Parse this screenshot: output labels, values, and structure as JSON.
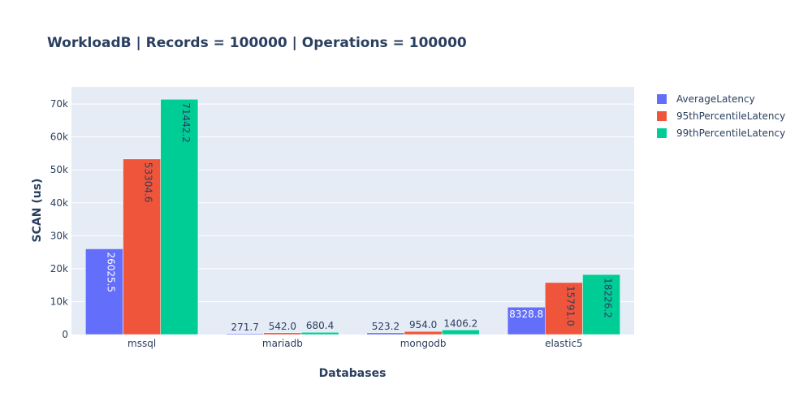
{
  "chart_data": {
    "type": "bar",
    "title": "WorkloadB | Records = 100000 | Operations = 100000",
    "xlabel": "Databases",
    "ylabel": "SCAN (us)",
    "categories": [
      "mssql",
      "mariadb",
      "mongodb",
      "elastic5"
    ],
    "series": [
      {
        "name": "AverageLatency",
        "color": "#636efa",
        "values": [
          26025.5,
          271.7,
          523.2,
          8328.8
        ],
        "labels": [
          "26025.5",
          "271.7",
          "523.2",
          "8328.8"
        ]
      },
      {
        "name": "95thPercentileLatency",
        "color": "#ef553b",
        "values": [
          53304.6,
          542.0,
          954.0,
          15791.0
        ],
        "labels": [
          "53304.6",
          "542.0",
          "954.0",
          "15791.0"
        ]
      },
      {
        "name": "99thPercentileLatency",
        "color": "#00cc96",
        "values": [
          71442.2,
          680.4,
          1406.2,
          18226.2
        ],
        "labels": [
          "71442.2",
          "680.4",
          "1406.2",
          "18226.2"
        ]
      }
    ],
    "ylim": [
      0,
      75200
    ],
    "yticks": [
      0,
      10000,
      20000,
      30000,
      40000,
      50000,
      60000,
      70000
    ],
    "ytick_labels": [
      "0",
      "10k",
      "20k",
      "30k",
      "40k",
      "50k",
      "60k",
      "70k"
    ],
    "grid": true,
    "legend_position": "top-right",
    "plot_background": "#e5ecf6"
  }
}
